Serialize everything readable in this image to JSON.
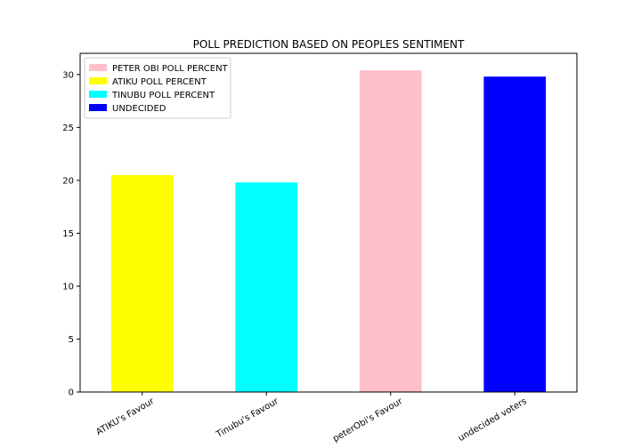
{
  "chart_data": {
    "type": "bar",
    "title": "POLL PREDICTION BASED ON PEOPLES SENTIMENT",
    "xlabel": "",
    "ylabel": "",
    "categories": [
      "ATIKU's Favour",
      "Tinubu's Favour",
      "peterObi's Favour",
      "undecided voters"
    ],
    "values": [
      20.5,
      19.8,
      30.4,
      29.8
    ],
    "bar_colors": [
      "#ffff00",
      "#00ffff",
      "#ffc0cb",
      "#0000ff"
    ],
    "ylim": [
      0,
      32
    ],
    "yticks": [
      0,
      5,
      10,
      15,
      20,
      25,
      30
    ],
    "grid": false,
    "legend_position": "top-left",
    "legend": [
      {
        "label": "PETER OBI POLL PERCENT",
        "color": "#ffc0cb"
      },
      {
        "label": "ATIKU POLL PERCENT",
        "color": "#ffff00"
      },
      {
        "label": "TINUBU POLL PERCENT",
        "color": "#00ffff"
      },
      {
        "label": "UNDECIDED",
        "color": "#0000ff"
      }
    ]
  }
}
